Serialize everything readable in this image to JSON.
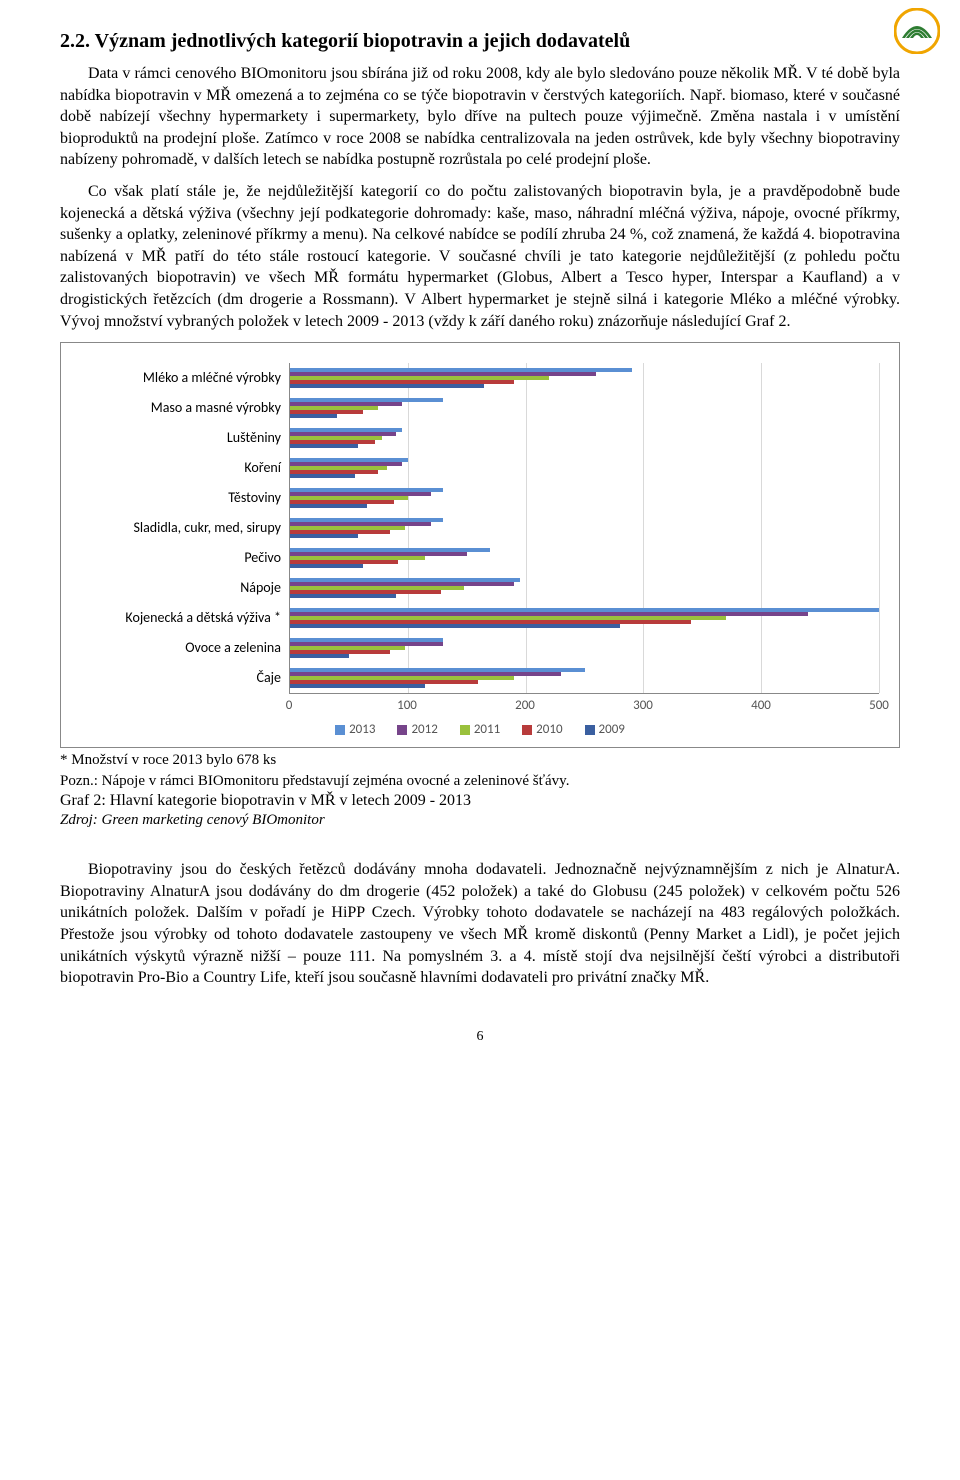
{
  "logo": {
    "outer_color": "#f0a500",
    "inner_color": "#2e7d32"
  },
  "heading": "2.2. Význam jednotlivých kategorií biopotravin a jejich dodavatelů",
  "para1": "Data v rámci cenového BIOmonitoru jsou sbírána již od roku 2008, kdy ale bylo sledováno pouze několik MŘ. V té době byla nabídka biopotravin v MŘ omezená a to zejména co se týče biopotravin v čerstvých kategoriích. Např. biomaso, které v současné době nabízejí všechny hypermarkety i supermarkety, bylo dříve na pultech pouze výjimečně. Změna nastala i v umístění bioproduktů na prodejní ploše. Zatímco v roce 2008 se nabídka centralizovala na jeden ostrůvek, kde byly všechny biopotraviny nabízeny pohromadě, v dalších letech se nabídka postupně rozrůstala po celé prodejní ploše.",
  "para2": "Co však platí stále je, že nejdůležitější kategorií co do počtu zalistovaných biopotravin byla, je a pravděpodobně bude kojenecká a dětská výživa (všechny její podkategorie dohromady: kaše, maso, náhradní mléčná výživa, nápoje, ovocné příkrmy, sušenky a oplatky, zeleninové příkrmy a menu). Na celkové nabídce se podílí zhruba 24 %, což znamená, že každá 4. biopotravina nabízená v MŘ patří do této stále rostoucí kategorie. V současné chvíli je tato kategorie nejdůležitější (z pohledu počtu zalistovaných biopotravin) ve všech MŘ formátu hypermarket (Globus, Albert a Tesco hyper, Interspar a Kaufland) a v drogistických řetězcích (dm drogerie a Rossmann). V Albert hypermarket je stejně silná i kategorie Mléko a mléčné výrobky. Vývoj množství vybraných položek v letech 2009 - 2013 (vždy k září daného roku) znázorňuje následující Graf 2.",
  "chart": {
    "type": "horizontal-bar-grouped",
    "xlim": [
      0,
      500
    ],
    "xtick_step": 100,
    "xticks": [
      "0",
      "100",
      "200",
      "300",
      "400",
      "500"
    ],
    "grid_color": "#d9d9d9",
    "border_color": "#888888",
    "label_fontsize": 14,
    "tick_fontsize": 13,
    "categories": [
      "Mléko a mléčné výrobky",
      "Maso a masné výrobky",
      "Luštěniny",
      "Koření",
      "Těstoviny",
      "Sladidla, cukr, med, sirupy",
      "Pečivo",
      "Nápoje",
      "Kojenecká a dětská výživa *",
      "Ovoce a zelenina",
      "Čaje"
    ],
    "series": [
      {
        "label": "2013",
        "color": "#5a8fd3"
      },
      {
        "label": "2012",
        "color": "#76448a"
      },
      {
        "label": "2011",
        "color": "#9ac13c"
      },
      {
        "label": "2010",
        "color": "#b83b3b"
      },
      {
        "label": "2009",
        "color": "#3a5fa0"
      }
    ],
    "values": [
      [
        290,
        260,
        220,
        190,
        165
      ],
      [
        130,
        95,
        75,
        62,
        40
      ],
      [
        95,
        90,
        78,
        72,
        58
      ],
      [
        100,
        95,
        82,
        75,
        55
      ],
      [
        130,
        120,
        100,
        88,
        65
      ],
      [
        130,
        120,
        98,
        85,
        58
      ],
      [
        170,
        150,
        115,
        92,
        62
      ],
      [
        195,
        190,
        148,
        128,
        90
      ],
      [
        500,
        440,
        370,
        340,
        280
      ],
      [
        130,
        130,
        98,
        85,
        50
      ],
      [
        250,
        230,
        190,
        160,
        115
      ]
    ],
    "legend": [
      "2013",
      "2012",
      "2011",
      "2010",
      "2009"
    ]
  },
  "footnote1": "* Množství v roce 2013 bylo 678 ks",
  "footnote2": "Pozn.: Nápoje v rámci BIOmonitoru představují zejména ovocné a zeleninové šťávy.",
  "caption": "Graf 2: Hlavní kategorie biopotravin v MŘ v letech 2009 - 2013",
  "source": "Zdroj: Green marketing cenový BIOmonitor",
  "para3": "Biopotraviny jsou do českých řetězců dodávány mnoha dodavateli. Jednoznačně nejvýznamnějším z nich je AlnaturA. Biopotraviny AlnaturA jsou dodávány do dm drogerie (452 položek) a také do Globusu (245 položek) v celkovém počtu 526 unikátních položek. Dalším v pořadí je HiPP Czech. Výrobky tohoto dodavatele se nacházejí na 483 regálových položkách. Přestože jsou výrobky od tohoto dodavatele zastoupeny ve všech MŘ kromě diskontů (Penny Market a Lidl), je počet jejich unikátních výskytů výrazně nižší – pouze 111. Na pomyslném 3. a 4. místě stojí dva nejsilnější čeští výrobci a distributoři biopotravin Pro-Bio a Country Life, kteří jsou současně hlavními dodavateli pro privátní značky MŘ.",
  "page_number": "6"
}
